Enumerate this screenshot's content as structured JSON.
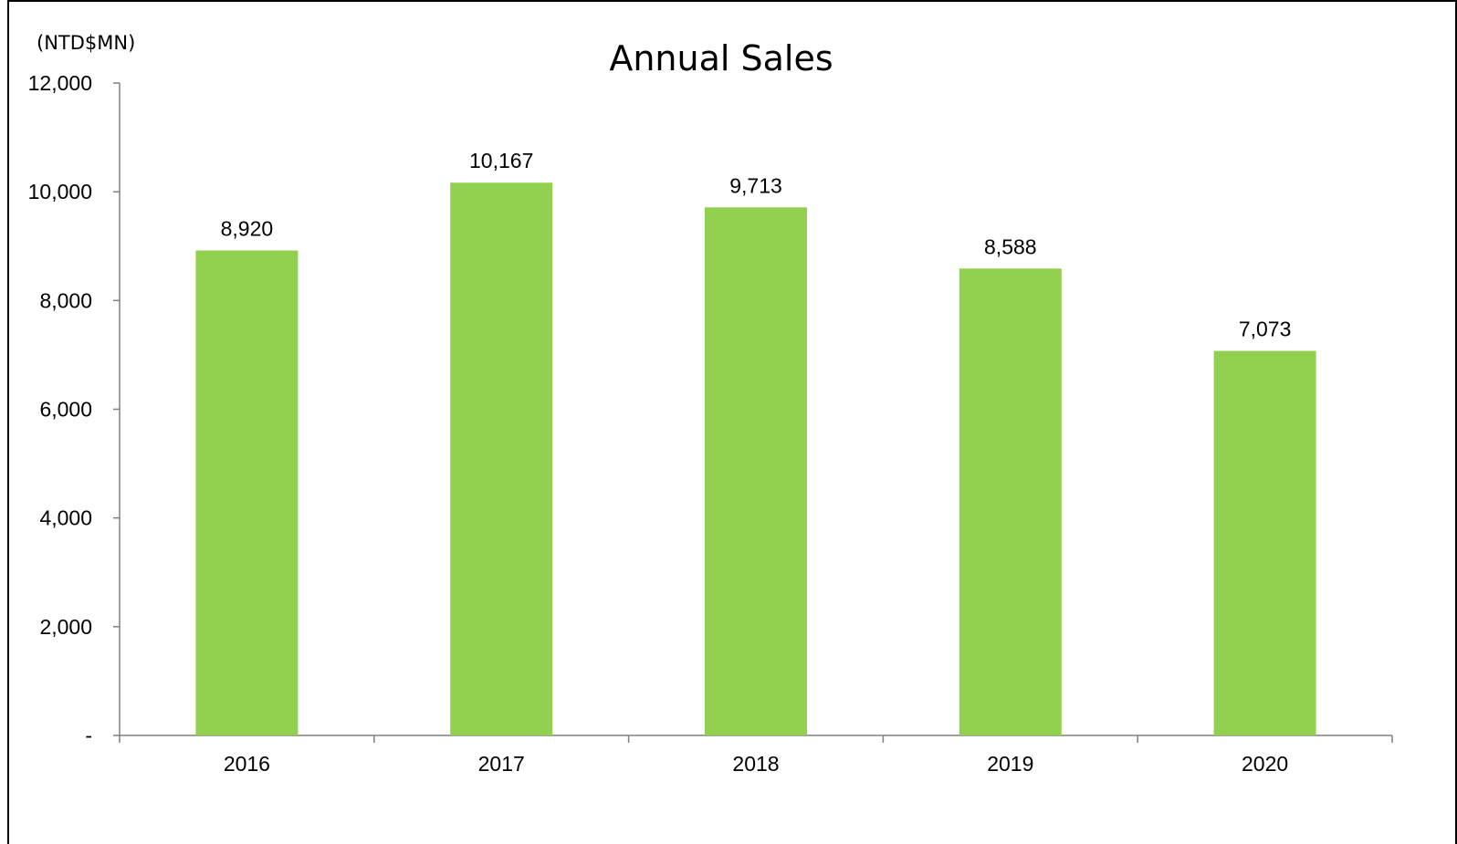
{
  "chart_data": {
    "type": "bar",
    "title": "Annual Sales",
    "unit_label": "(NTD$MN)",
    "categories": [
      "2016",
      "2017",
      "2018",
      "2019",
      "2020"
    ],
    "values": [
      8920,
      10167,
      9713,
      8588,
      7073
    ],
    "value_labels": [
      "8,920",
      "10,167",
      "9,713",
      "8,588",
      "7,073"
    ],
    "ylim": [
      0,
      12000
    ],
    "yticks": [
      0,
      2000,
      4000,
      6000,
      8000,
      10000,
      12000
    ],
    "ytick_labels": [
      "-",
      "2,000",
      "4,000",
      "6,000",
      "8,000",
      "10,000",
      "12,000"
    ],
    "grid": false,
    "legend": "none",
    "bar_color": "#92d050"
  }
}
